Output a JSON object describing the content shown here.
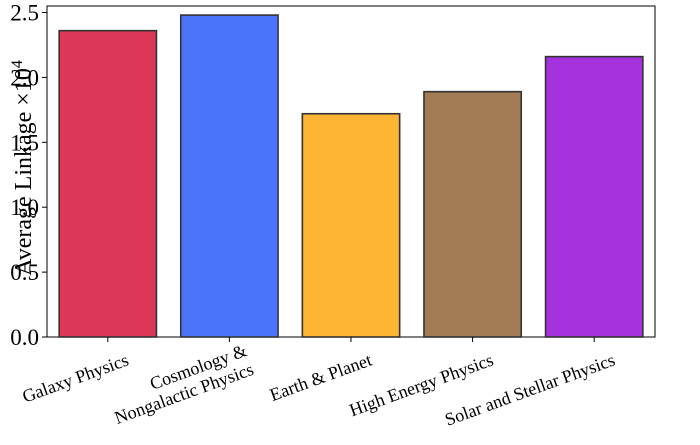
{
  "chart_data": {
    "type": "bar",
    "categories": [
      "Galaxy Physics",
      "Cosmology & Nongalactic Physics",
      "Earth & Planet",
      "High Energy Physics",
      "Solar and Stellar Physics"
    ],
    "category_lines": [
      [
        "Galaxy Physics"
      ],
      [
        "Cosmology &",
        "Nongalactic Physics"
      ],
      [
        "Earth & Planet"
      ],
      [
        "High Energy Physics"
      ],
      [
        "Solar and Stellar Physics"
      ]
    ],
    "values": [
      2.36,
      2.48,
      1.72,
      1.89,
      2.16
    ],
    "colors": [
      "#dc3758",
      "#4b74fb",
      "#fdb533",
      "#a37b54",
      "#a632dd"
    ],
    "ylabel": "Average Linkage ×10",
    "ylabel_exponent": "4",
    "ylim": [
      0,
      2.55
    ],
    "yticks": [
      0.0,
      0.5,
      1.0,
      1.5,
      2.0,
      2.5
    ],
    "ytick_labels": [
      "0.0",
      "0.5",
      "1.0",
      "1.5",
      "2.0",
      "2.5"
    ],
    "grid": false,
    "legend": "none"
  }
}
